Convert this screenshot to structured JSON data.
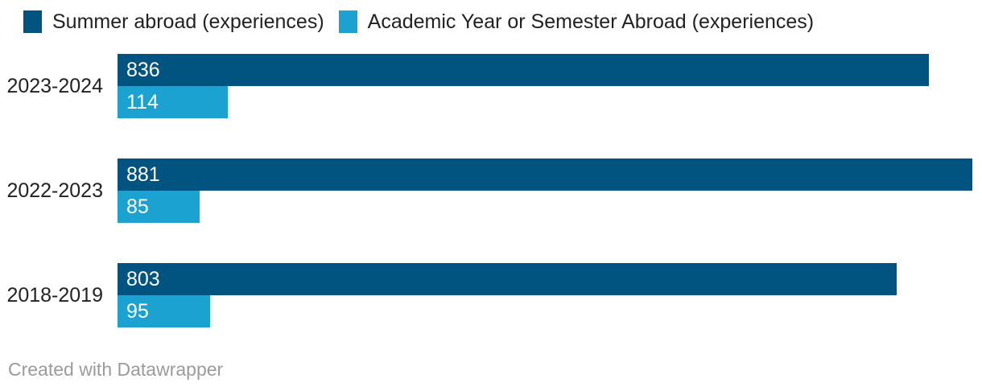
{
  "chart_data": {
    "type": "bar",
    "orientation": "horizontal",
    "categories": [
      "2023-2024",
      "2022-2023",
      "2018-2019"
    ],
    "series": [
      {
        "name": "Summer abroad (experiences)",
        "color": "#01547f",
        "values": [
          836,
          881,
          803
        ]
      },
      {
        "name": "Academic Year or Semester Abroad (experiences)",
        "color": "#1ca2d0",
        "values": [
          114,
          85,
          95
        ]
      }
    ],
    "xlim": [
      0,
      881
    ],
    "legend_position": "top",
    "grid": false,
    "value_label_position": "inside-left",
    "value_label_color": "#ffffff"
  },
  "footer": {
    "attribution": "Created with Datawrapper"
  },
  "colors": {
    "label_text": "#222222",
    "footer_text": "#9b9b9b",
    "background": "#ffffff"
  }
}
